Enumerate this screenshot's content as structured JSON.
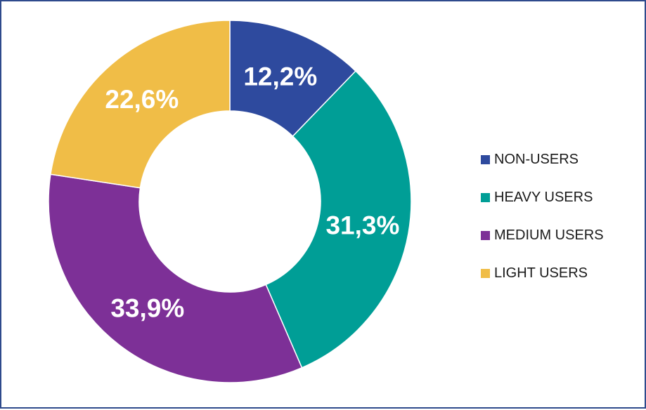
{
  "chart_data": {
    "type": "pie",
    "donut": true,
    "categories": [
      "NON-USERS",
      "HEAVY USERS",
      "MEDIUM USERS",
      "LIGHT USERS"
    ],
    "values": [
      12.2,
      31.3,
      33.9,
      22.6
    ],
    "labels": [
      "12,2%",
      "31,3%",
      "33,9%",
      "22,6%"
    ],
    "colors": [
      "#2e4a9e",
      "#009e96",
      "#7d3097",
      "#f0bd47"
    ],
    "title": "",
    "legend": "right"
  }
}
